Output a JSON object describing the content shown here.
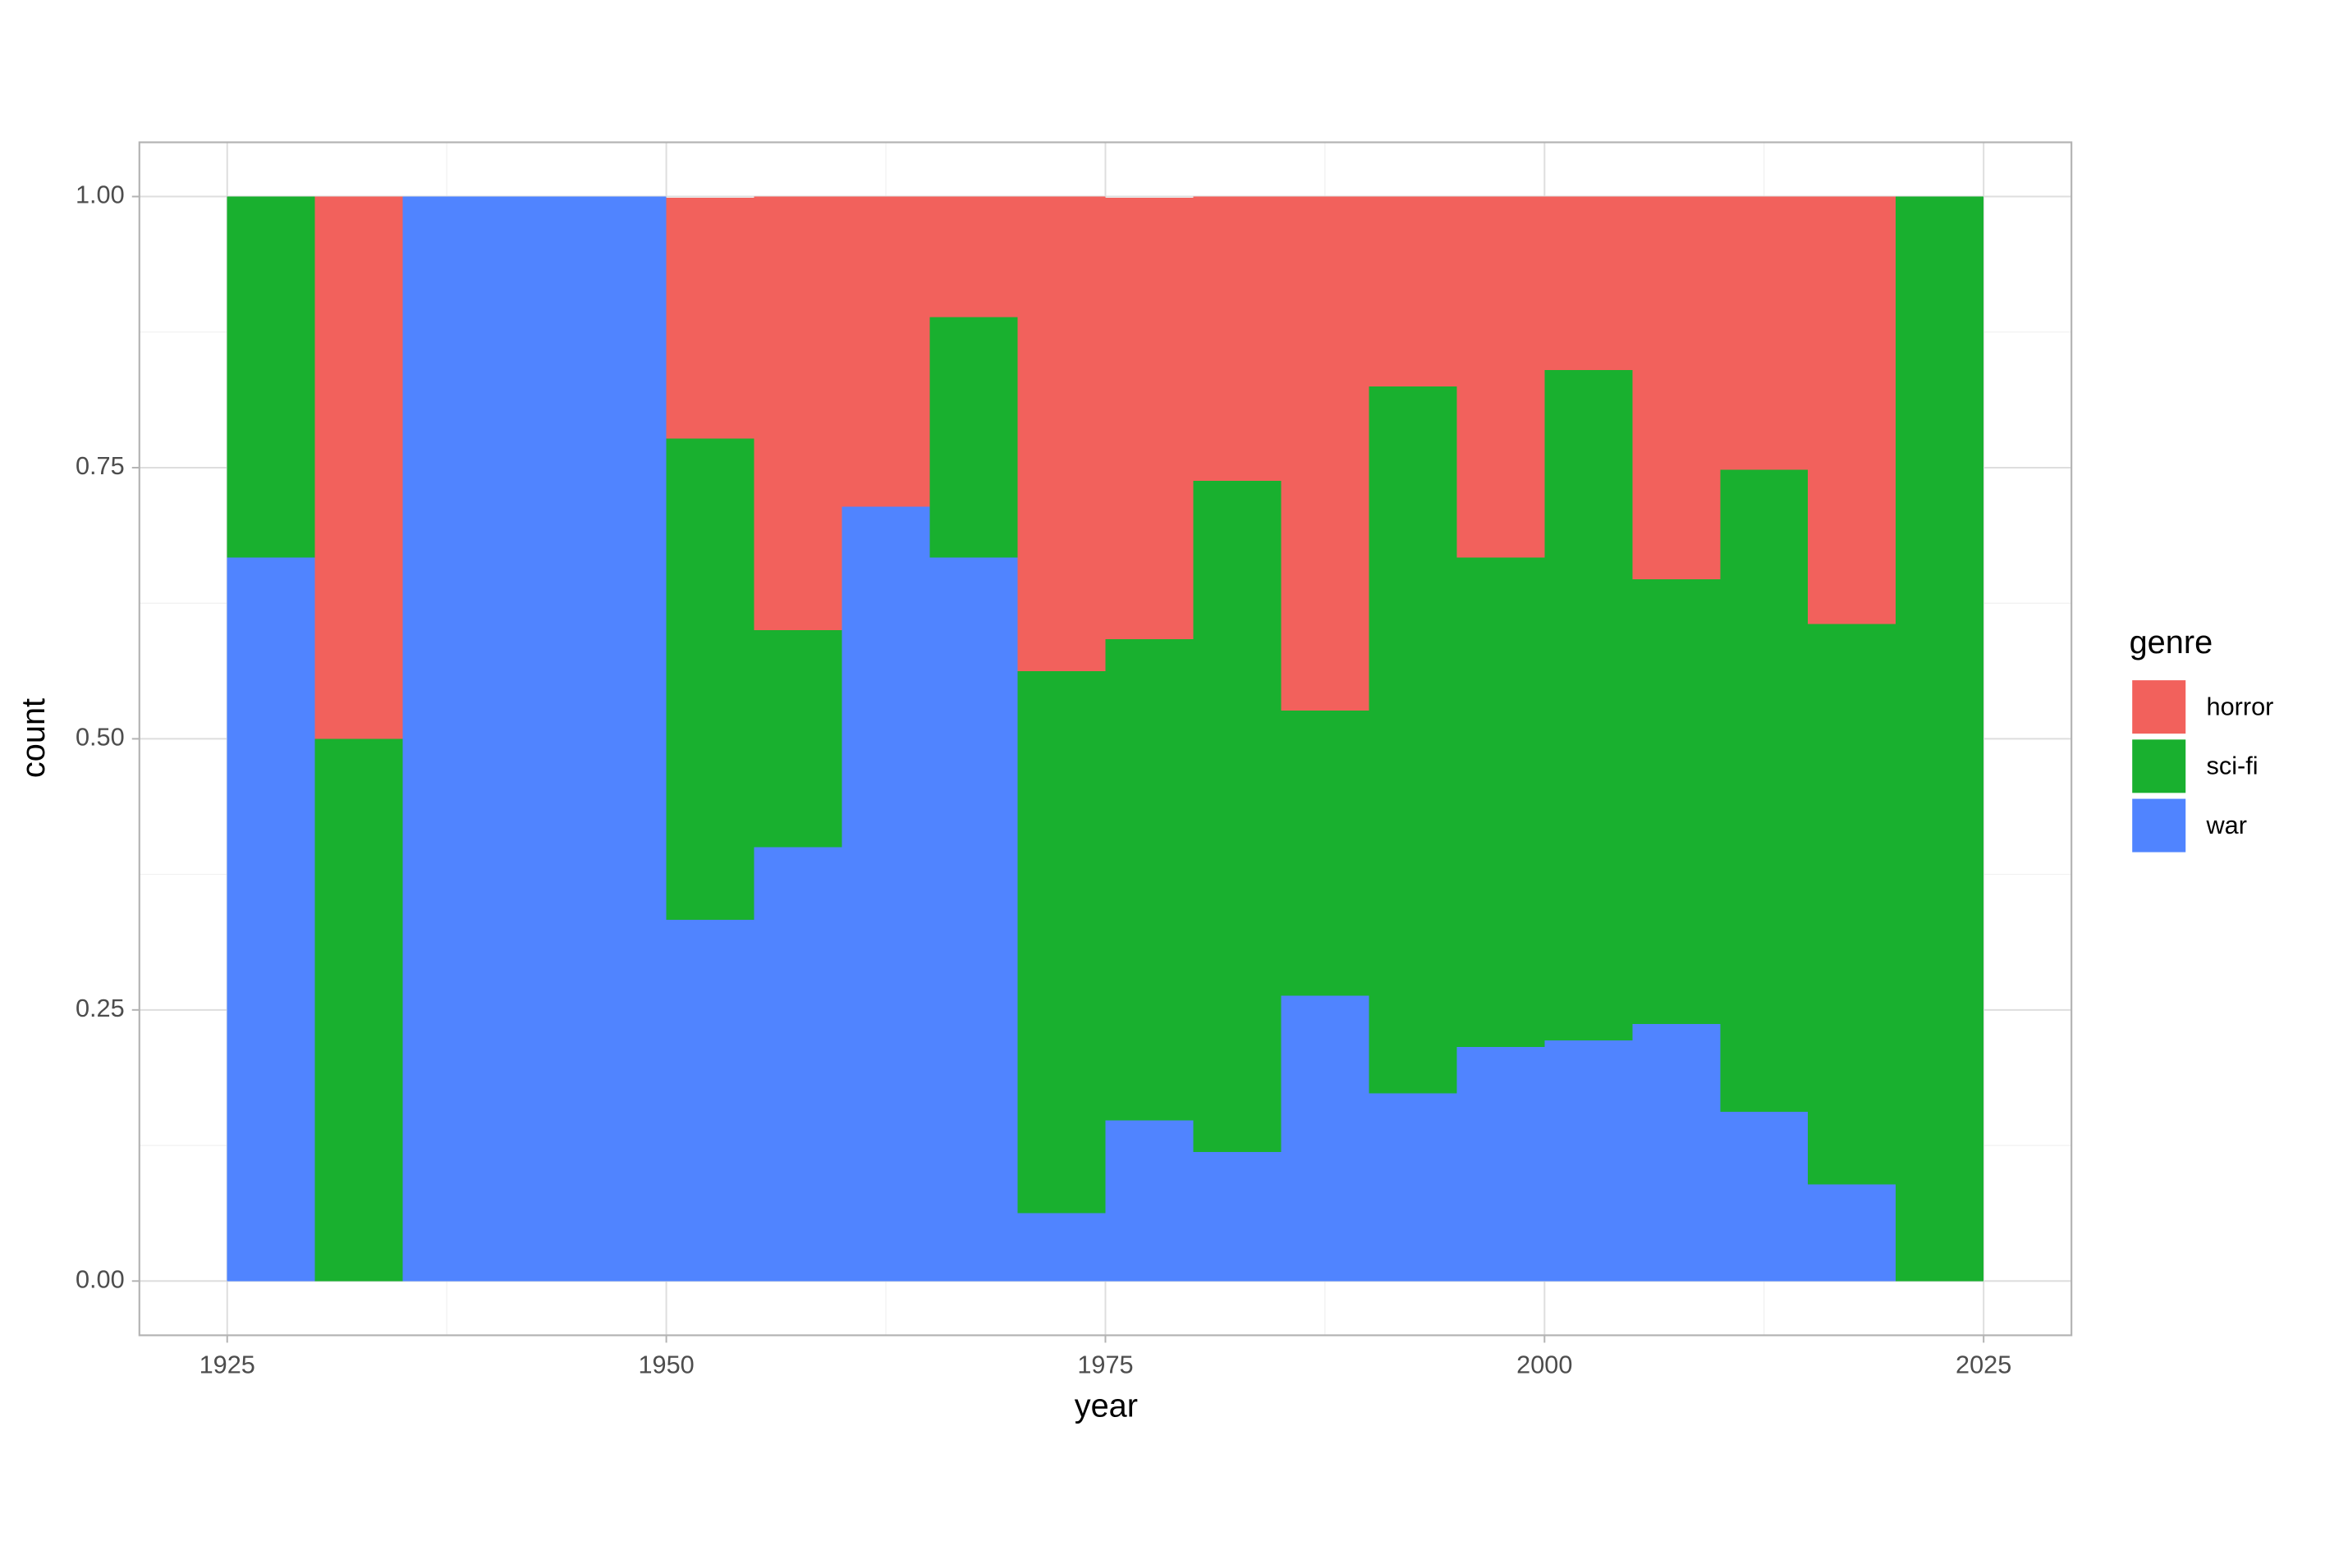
{
  "chart_data": {
    "type": "histogram",
    "x_label": "year",
    "y_label": "count",
    "legend_title": "genre",
    "legend_position": "right",
    "grid": true,
    "bins": [
      1925,
      1930,
      1935,
      1940,
      1945,
      1950,
      1955,
      1960,
      1965,
      1970,
      1975,
      1980,
      1985,
      1990,
      1995,
      2000,
      2005,
      2010,
      2015,
      2020,
      2025
    ],
    "series": [
      {
        "name": "war",
        "color": "#5084ff",
        "values": [
          0.667,
          0,
          1,
          1,
          1,
          0.333,
          0.4,
          0.714,
          0.667,
          0.0625,
          0.148,
          0.119,
          0.263,
          0.173,
          0.216,
          0.222,
          0.237,
          0.156,
          0.089,
          0
        ]
      },
      {
        "name": "sci-fi",
        "color": "#19b02f",
        "values": [
          0.333,
          0.5,
          0,
          0,
          0,
          0.444,
          0.2,
          0,
          0.222,
          0.5,
          0.444,
          0.619,
          0.263,
          0.652,
          0.451,
          0.618,
          0.41,
          0.592,
          0.517,
          1
        ]
      },
      {
        "name": "horror",
        "color": "#f2615c",
        "values": [
          0,
          0.5,
          0,
          0,
          0,
          0.222,
          0.4,
          0.286,
          0.111,
          0.4375,
          0.407,
          0.262,
          0.474,
          0.175,
          0.333,
          0.16,
          0.353,
          0.252,
          0.394,
          0
        ]
      }
    ],
    "xlim": [
      1920,
      2030
    ],
    "xticks": [
      1925,
      1950,
      1975,
      2000,
      2025
    ],
    "ylim": [
      -0.05,
      1.05
    ],
    "yticks": [
      {
        "value": 0,
        "label": "0.00"
      },
      {
        "value": 0.25,
        "label": "0.25"
      },
      {
        "value": 0.5,
        "label": "0.50"
      },
      {
        "value": 0.75,
        "label": "0.75"
      },
      {
        "value": 1,
        "label": "1.00"
      }
    ]
  }
}
